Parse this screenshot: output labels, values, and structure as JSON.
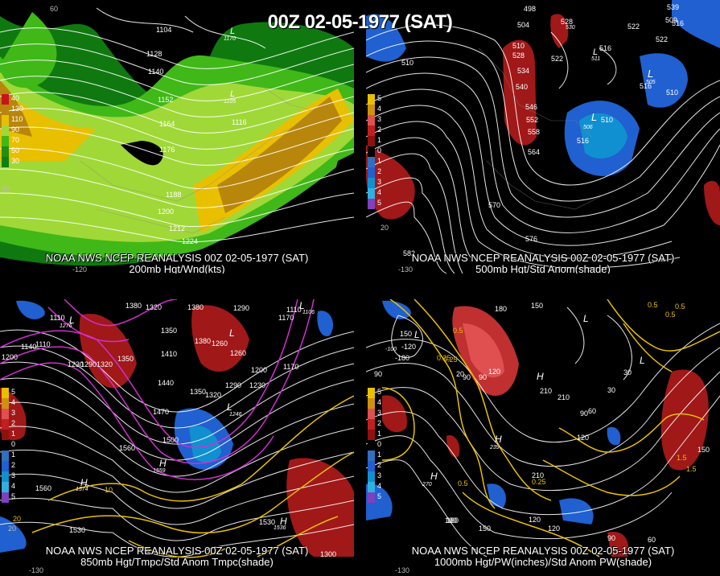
{
  "title": "00Z 02-05-1977 (SAT)",
  "panels": [
    {
      "caption_line1": "NOAA NWS NCEP REANALYSIS 00Z 02-05-1977 (SAT)",
      "caption_line2": "200mb Hgt/Wnd(kts)",
      "legend": [
        {
          "label": "40",
          "color": "#c8141e"
        },
        {
          "label": "130",
          "color": "#b8860b"
        },
        {
          "label": "110",
          "color": "#e8c000"
        },
        {
          "label": "90",
          "color": "#a0d838"
        },
        {
          "label": "70",
          "color": "#40b818"
        },
        {
          "label": "50",
          "color": "#209010"
        },
        {
          "label": "30",
          "color": "#108010"
        }
      ],
      "contour_labels": [
        "1104",
        "1128",
        "1140",
        "1152",
        "1164",
        "1176",
        "1188",
        "1200",
        "1212",
        "1224",
        "1116",
        "1170",
        "1105"
      ],
      "edge_labels": [
        "60",
        "-120",
        "30"
      ]
    },
    {
      "caption_line1": "NOAA NWS NCEP REANALYSIS 00Z 02-05-1977 (SAT)",
      "caption_line2": "500mb Hgt/Std Anom(shade)",
      "legend": [
        {
          "label": "5",
          "color": "#e8c000"
        },
        {
          "label": "4",
          "color": "#d09010"
        },
        {
          "label": "3",
          "color": "#e05050"
        },
        {
          "label": "2",
          "color": "#c02020"
        },
        {
          "label": "1",
          "color": "#901010"
        },
        {
          "label": "0",
          "color": "#000000"
        },
        {
          "label": "1",
          "color": "#3070c0"
        },
        {
          "label": "2",
          "color": "#2060d0"
        },
        {
          "label": "3",
          "color": "#1090d0"
        },
        {
          "label": "4",
          "color": "#30b0e0"
        },
        {
          "label": "5",
          "color": "#8040c0"
        }
      ],
      "contour_labels": [
        "498",
        "504",
        "510",
        "516",
        "522",
        "528",
        "534",
        "540",
        "546",
        "552",
        "558",
        "564",
        "570",
        "576",
        "582",
        "510",
        "516",
        "522",
        "510",
        "516",
        "528",
        "530",
        "539",
        "511",
        "516",
        "505",
        "522",
        "509",
        "506",
        "510"
      ],
      "edge_labels": [
        "20",
        "-130"
      ]
    },
    {
      "caption_line1": "NOAA NWS NCEP REANALYSIS 00Z 02-05-1977 (SAT)",
      "caption_line2": "850mb Hgt/Tmpc/Std Anom Tmpc(shade)",
      "legend": [
        {
          "label": "5",
          "color": "#e8c000"
        },
        {
          "label": "4",
          "color": "#d09010"
        },
        {
          "label": "3",
          "color": "#e05050"
        },
        {
          "label": "2",
          "color": "#c02020"
        },
        {
          "label": "1",
          "color": "#901010"
        },
        {
          "label": "0",
          "color": "#000000"
        },
        {
          "label": "1",
          "color": "#3070c0"
        },
        {
          "label": "2",
          "color": "#2060d0"
        },
        {
          "label": "3",
          "color": "#1090d0"
        },
        {
          "label": "4",
          "color": "#30b0e0"
        },
        {
          "label": "5",
          "color": "#8040c0"
        }
      ],
      "contour_labels": [
        "1380",
        "1320",
        "1380",
        "1290",
        "1110",
        "1110",
        "1170",
        "1200",
        "1140",
        "1110",
        "1230",
        "1290",
        "1320",
        "1350",
        "1350",
        "1410",
        "1380",
        "1260",
        "1260",
        "1200",
        "1170",
        "1440",
        "1290",
        "1230",
        "1350",
        "1320",
        "1470",
        "1500",
        "1560",
        "1560",
        "1530",
        "1530",
        "1300",
        "1574",
        "1559",
        "1536",
        "10",
        "20",
        "1246",
        "1106",
        "1276"
      ],
      "edge_labels": [
        "-130",
        "20"
      ]
    },
    {
      "caption_line1": "NOAA NWS NCEP REANALYSIS 00Z 02-05-1977 (SAT)",
      "caption_line2": "1000mb Hgt/PW(inches)/Std Anom PW(shade)",
      "legend": [
        {
          "label": "5",
          "color": "#e8c000"
        },
        {
          "label": "4",
          "color": "#d09010"
        },
        {
          "label": "3",
          "color": "#e05050"
        },
        {
          "label": "2",
          "color": "#c02020"
        },
        {
          "label": "1",
          "color": "#901010"
        },
        {
          "label": "0",
          "color": "#000000"
        },
        {
          "label": "1",
          "color": "#3070c0"
        },
        {
          "label": "2",
          "color": "#2060d0"
        },
        {
          "label": "3",
          "color": "#1090d0"
        },
        {
          "label": "4",
          "color": "#30b0e0"
        },
        {
          "label": "5",
          "color": "#8040c0"
        }
      ],
      "contour_labels": [
        "180",
        "150",
        "0.5",
        "0.5",
        "0.5",
        "-120",
        "-180",
        "150",
        "0.25",
        "90",
        "120",
        "30",
        "90",
        "90",
        "210",
        "20",
        "90",
        "60",
        "30",
        "120",
        "150",
        "180",
        "1.5",
        "210",
        "0.25",
        "0.5",
        "120",
        "180",
        "150",
        "120",
        "60",
        "90",
        "210",
        "270",
        "239",
        "-100",
        "0.25",
        "0.5",
        "1.5"
      ],
      "edge_labels": [
        "-130"
      ]
    }
  ]
}
